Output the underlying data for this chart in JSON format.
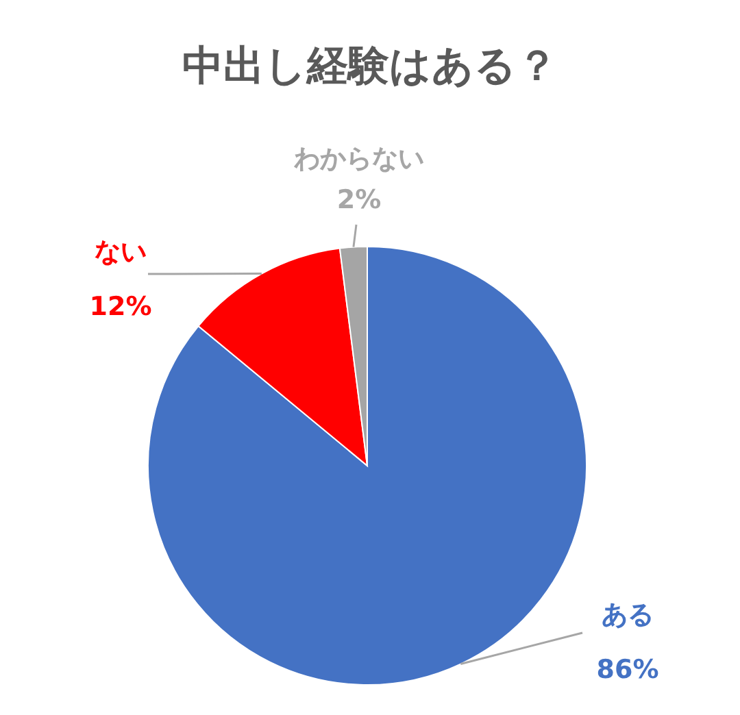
{
  "chart_data": {
    "type": "pie",
    "title": "中出し経験はある？",
    "categories": [
      "ある",
      "ない",
      "わからない"
    ],
    "values": [
      86,
      12,
      2
    ],
    "colors": [
      "#4472c4",
      "#ff0000",
      "#a5a5a5"
    ],
    "value_labels": [
      "86%",
      "12%",
      "2%"
    ]
  }
}
